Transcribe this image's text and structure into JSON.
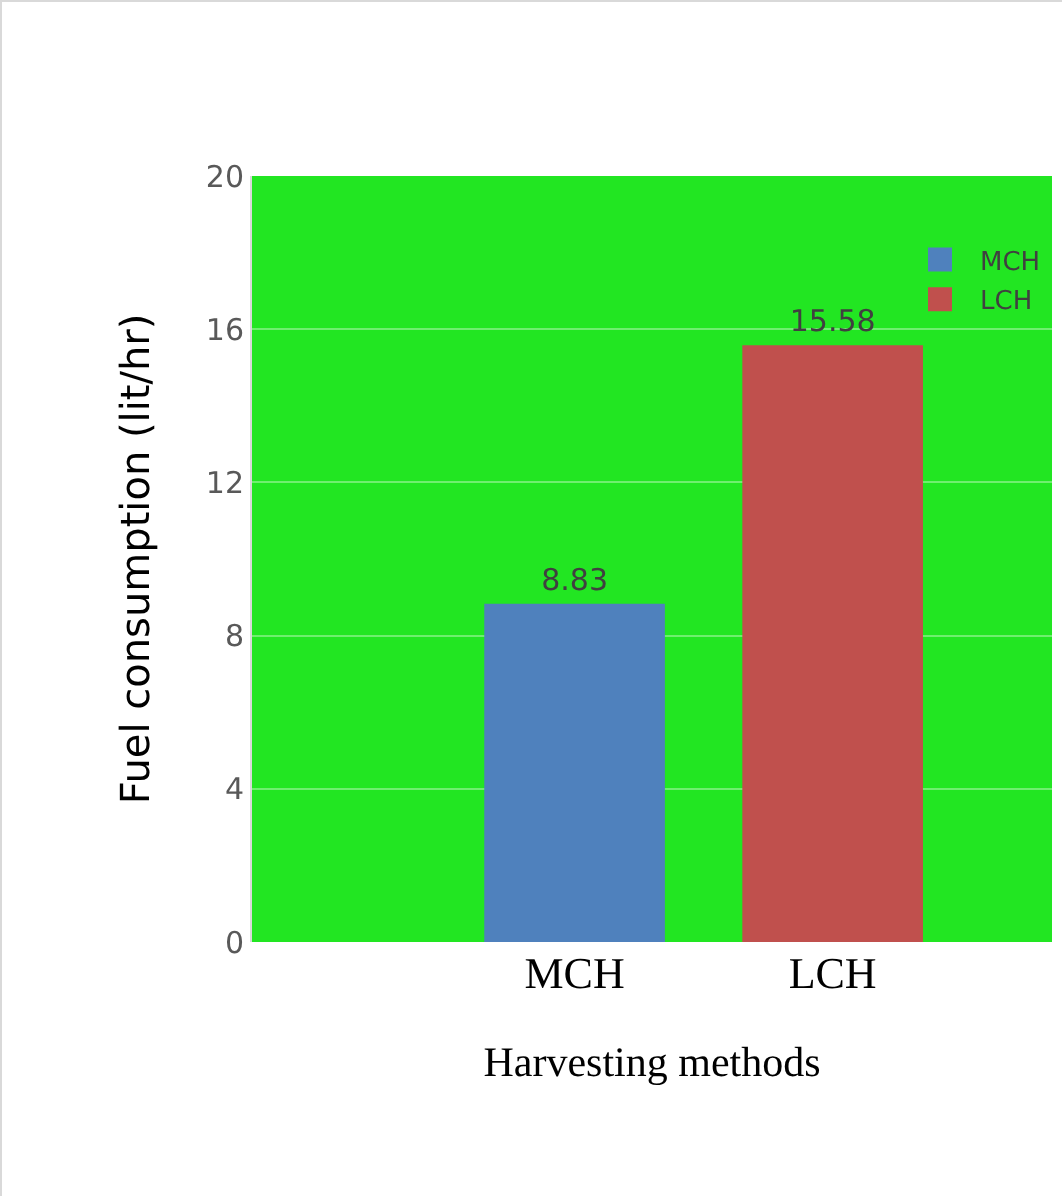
{
  "chart_data": {
    "type": "bar",
    "xlabel": "Harvesting methods",
    "ylabel": "Fuel consumption (lit/hr)",
    "categories": [
      "MCH",
      "LCH"
    ],
    "series": [
      {
        "name": "MCH",
        "color": "#4f81bd",
        "values": [
          8.83,
          null
        ]
      },
      {
        "name": "LCH",
        "color": "#c0504d",
        "values": [
          null,
          15.58
        ]
      }
    ],
    "ylim": [
      0,
      20
    ],
    "yticks": [
      0,
      4,
      8,
      12,
      16,
      20
    ],
    "grid": "y",
    "legend": "top right",
    "data_labels": true
  }
}
